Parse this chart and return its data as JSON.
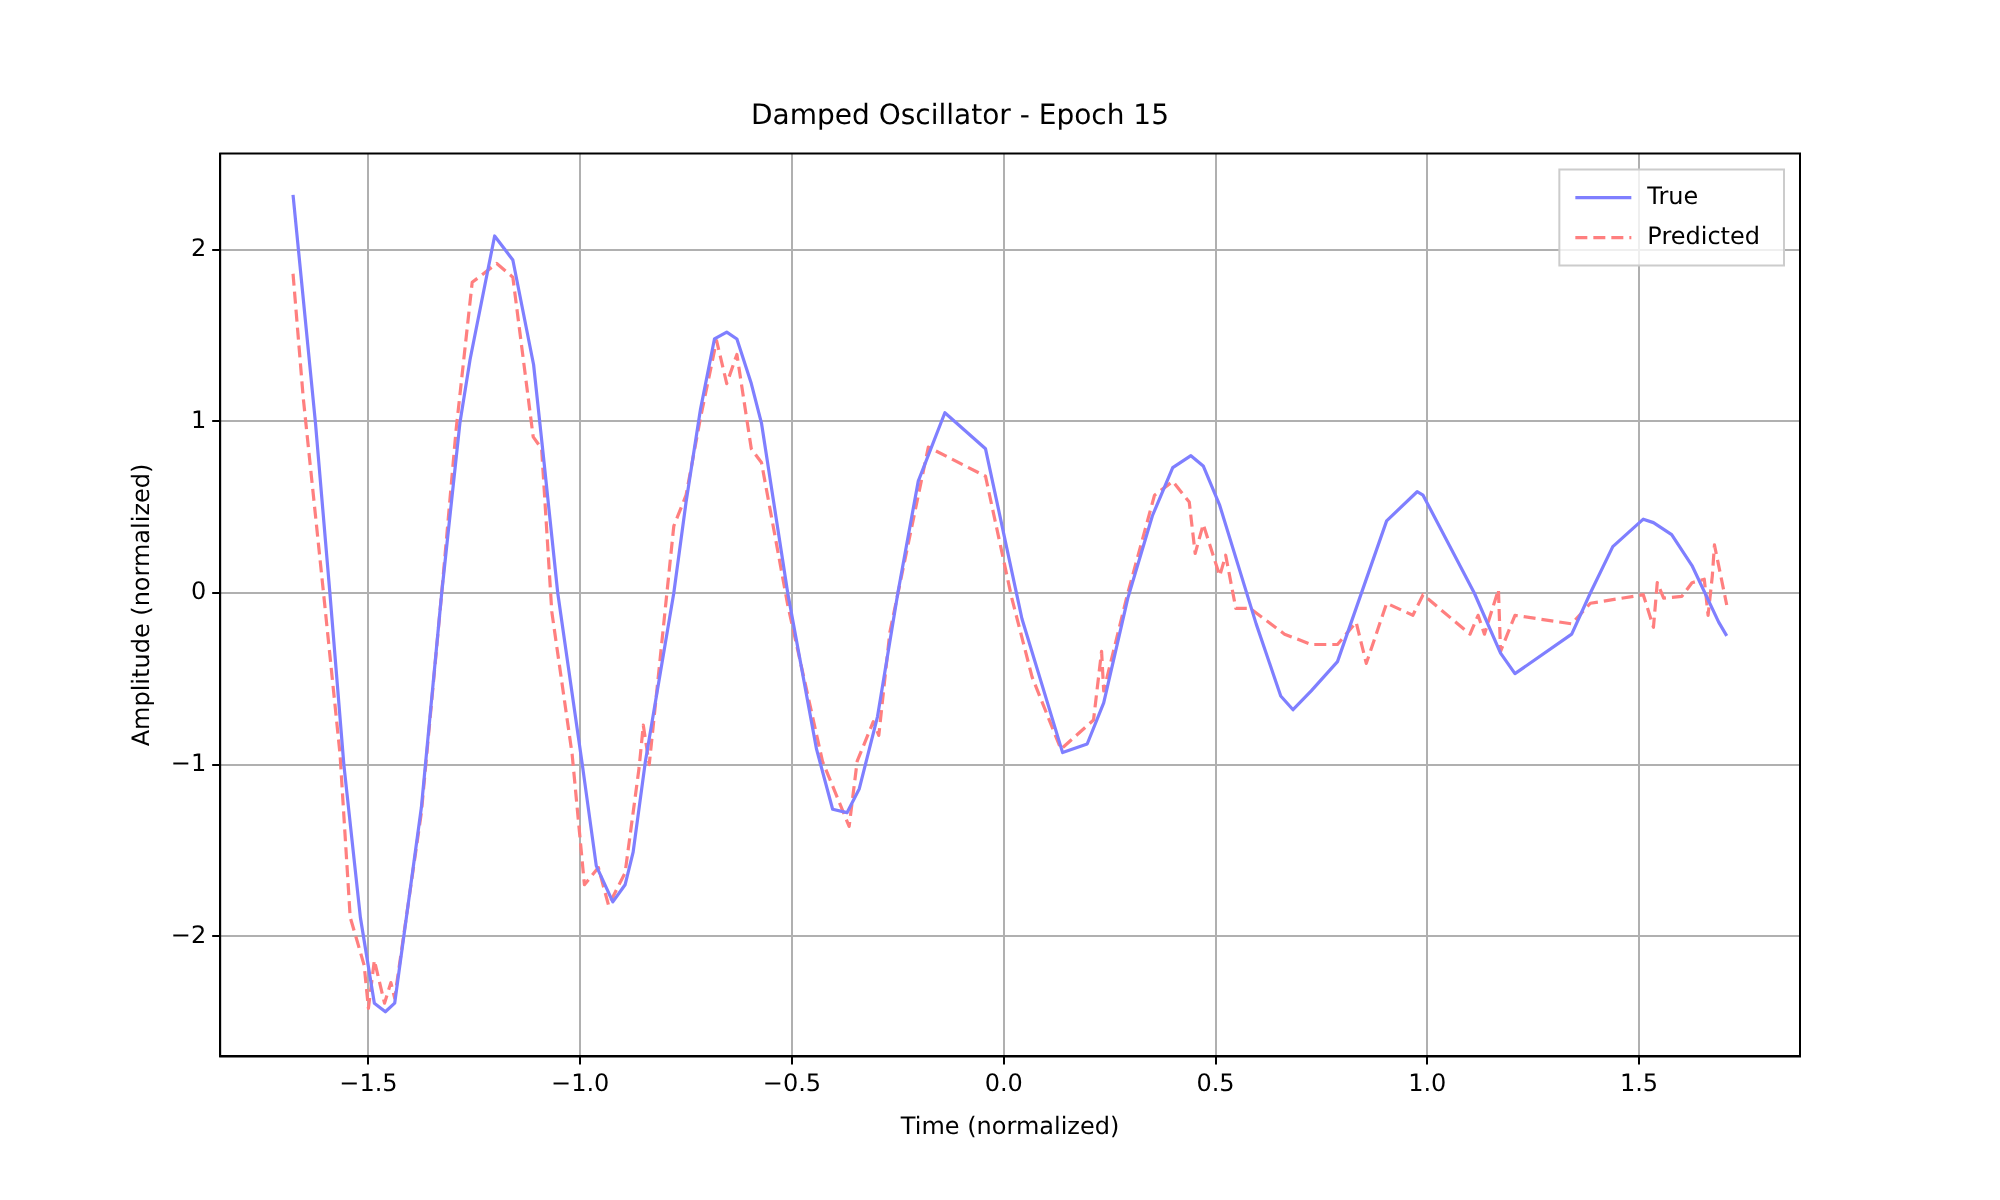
{
  "chart_data": {
    "type": "line",
    "title": "Damped Oscillator - Epoch 15",
    "xlabel": "Time (normalized)",
    "ylabel": "Amplitude (normalized)",
    "xlim": [
      -1.85,
      1.88
    ],
    "ylim": [
      -2.7,
      2.56
    ],
    "xticks": [
      {
        "value": -1.5,
        "label": "−1.5"
      },
      {
        "value": -1,
        "label": "−1.0"
      },
      {
        "value": -0.5,
        "label": "−0.5"
      },
      {
        "value": 0,
        "label": "0.0"
      },
      {
        "value": 0.5,
        "label": "0.5"
      },
      {
        "value": 1,
        "label": "1.0"
      },
      {
        "value": 1.5,
        "label": "1.5"
      }
    ],
    "yticks": [
      {
        "value": -2,
        "label": "−2"
      },
      {
        "value": -1,
        "label": "−1"
      },
      0,
      1,
      2
    ],
    "grid": true,
    "legend": "top right",
    "marker": "none",
    "series": [
      {
        "name": "True",
        "color": "#7f7fff",
        "line_style": "solid",
        "x": [
          -1.678,
          -1.625,
          -1.591,
          -1.558,
          -1.519,
          -1.486,
          -1.46,
          -1.438,
          -1.375,
          -1.327,
          -1.284,
          -1.26,
          -1.202,
          -1.159,
          -1.11,
          -1.087,
          -1.053,
          -0.995,
          -0.962,
          -0.923,
          -0.894,
          -0.875,
          -0.846,
          -0.779,
          -0.75,
          -0.716,
          -0.683,
          -0.654,
          -0.63,
          -0.596,
          -0.572,
          -0.51,
          -0.442,
          -0.404,
          -0.37,
          -0.341,
          -0.298,
          -0.25,
          -0.202,
          -0.139,
          -0.043,
          0.043,
          0.139,
          0.197,
          0.236,
          0.293,
          0.351,
          0.399,
          0.442,
          0.471,
          0.51,
          0.596,
          0.654,
          0.683,
          0.726,
          0.788,
          0.904,
          0.976,
          0.99,
          1.111,
          1.173,
          1.207,
          1.341,
          1.385,
          1.438,
          1.51,
          1.534,
          1.577,
          1.625,
          1.688,
          1.707
        ],
        "values": [
          2.32,
          0.99,
          0,
          -1,
          -1.89,
          -2.39,
          -2.44,
          -2.39,
          -1.25,
          0,
          0.99,
          1.36,
          2.08,
          1.94,
          1.33,
          0.8,
          0,
          -1,
          -1.59,
          -1.8,
          -1.7,
          -1.51,
          -0.98,
          0,
          0.53,
          1.07,
          1.48,
          1.52,
          1.48,
          1.22,
          0.99,
          0,
          -0.91,
          -1.26,
          -1.28,
          -1.14,
          -0.72,
          0,
          0.65,
          1.05,
          0.84,
          -0.15,
          -0.93,
          -0.88,
          -0.64,
          -0.03,
          0.45,
          0.73,
          0.8,
          0.74,
          0.51,
          -0.18,
          -0.6,
          -0.68,
          -0.57,
          -0.4,
          0.42,
          0.59,
          0.57,
          0,
          -0.35,
          -0.47,
          -0.24,
          0,
          0.27,
          0.43,
          0.41,
          0.34,
          0.16,
          -0.17,
          -0.25
        ]
      },
      {
        "name": "Predicted",
        "color": "#ff7f7f",
        "line_style": "dashed",
        "x": [
          -1.678,
          -1.654,
          -1.606,
          -1.567,
          -1.543,
          -1.524,
          -1.51,
          -1.5,
          -1.486,
          -1.462,
          -1.447,
          -1.438,
          -1.375,
          -1.327,
          -1.293,
          -1.255,
          -1.197,
          -1.159,
          -1.111,
          -1.091,
          -1.067,
          -1.019,
          -0.99,
          -0.957,
          -0.933,
          -0.894,
          -0.861,
          -0.851,
          -0.837,
          -0.779,
          -0.75,
          -0.716,
          -0.678,
          -0.654,
          -0.63,
          -0.596,
          -0.572,
          -0.51,
          -0.428,
          -0.365,
          -0.346,
          -0.308,
          -0.295,
          -0.269,
          -0.178,
          -0.043,
          0.019,
          0.067,
          0.135,
          0.212,
          0.231,
          0.236,
          0.293,
          0.356,
          0.399,
          0.438,
          0.452,
          0.471,
          0.51,
          0.524,
          0.548,
          0.582,
          0.663,
          0.726,
          0.788,
          0.832,
          0.856,
          0.904,
          0.966,
          0.99,
          1.101,
          1.12,
          1.135,
          1.168,
          1.173,
          1.207,
          1.341,
          1.385,
          1.51,
          1.534,
          1.543,
          1.558,
          1.601,
          1.625,
          1.654,
          1.663,
          1.673,
          1.678,
          1.707
        ],
        "values": [
          1.86,
          1.14,
          0,
          -0.94,
          -1.89,
          -2.05,
          -2.17,
          -2.42,
          -2.14,
          -2.39,
          -2.27,
          -2.36,
          -1.28,
          0,
          0.95,
          1.81,
          1.92,
          1.84,
          0.91,
          0.84,
          -0.11,
          -0.94,
          -1.7,
          -1.6,
          -1.82,
          -1.63,
          -1.02,
          -0.77,
          -1,
          0.39,
          0.57,
          1.02,
          1.47,
          1.22,
          1.39,
          0.84,
          0.76,
          -0.07,
          -0.98,
          -1.36,
          -0.98,
          -0.75,
          -0.83,
          -0.23,
          0.85,
          0.68,
          -0.03,
          -0.49,
          -0.91,
          -0.74,
          -0.34,
          -0.57,
          0,
          0.57,
          0.65,
          0.53,
          0.23,
          0.4,
          0.1,
          0.22,
          -0.09,
          -0.09,
          -0.24,
          -0.3,
          -0.3,
          -0.17,
          -0.41,
          -0.06,
          -0.13,
          -0.01,
          -0.24,
          -0.13,
          -0.24,
          0.02,
          -0.34,
          -0.13,
          -0.18,
          -0.06,
          -0.01,
          -0.2,
          0.06,
          -0.03,
          -0.02,
          0.06,
          0.08,
          -0.13,
          0.1,
          0.28,
          -0.07
        ]
      }
    ]
  }
}
